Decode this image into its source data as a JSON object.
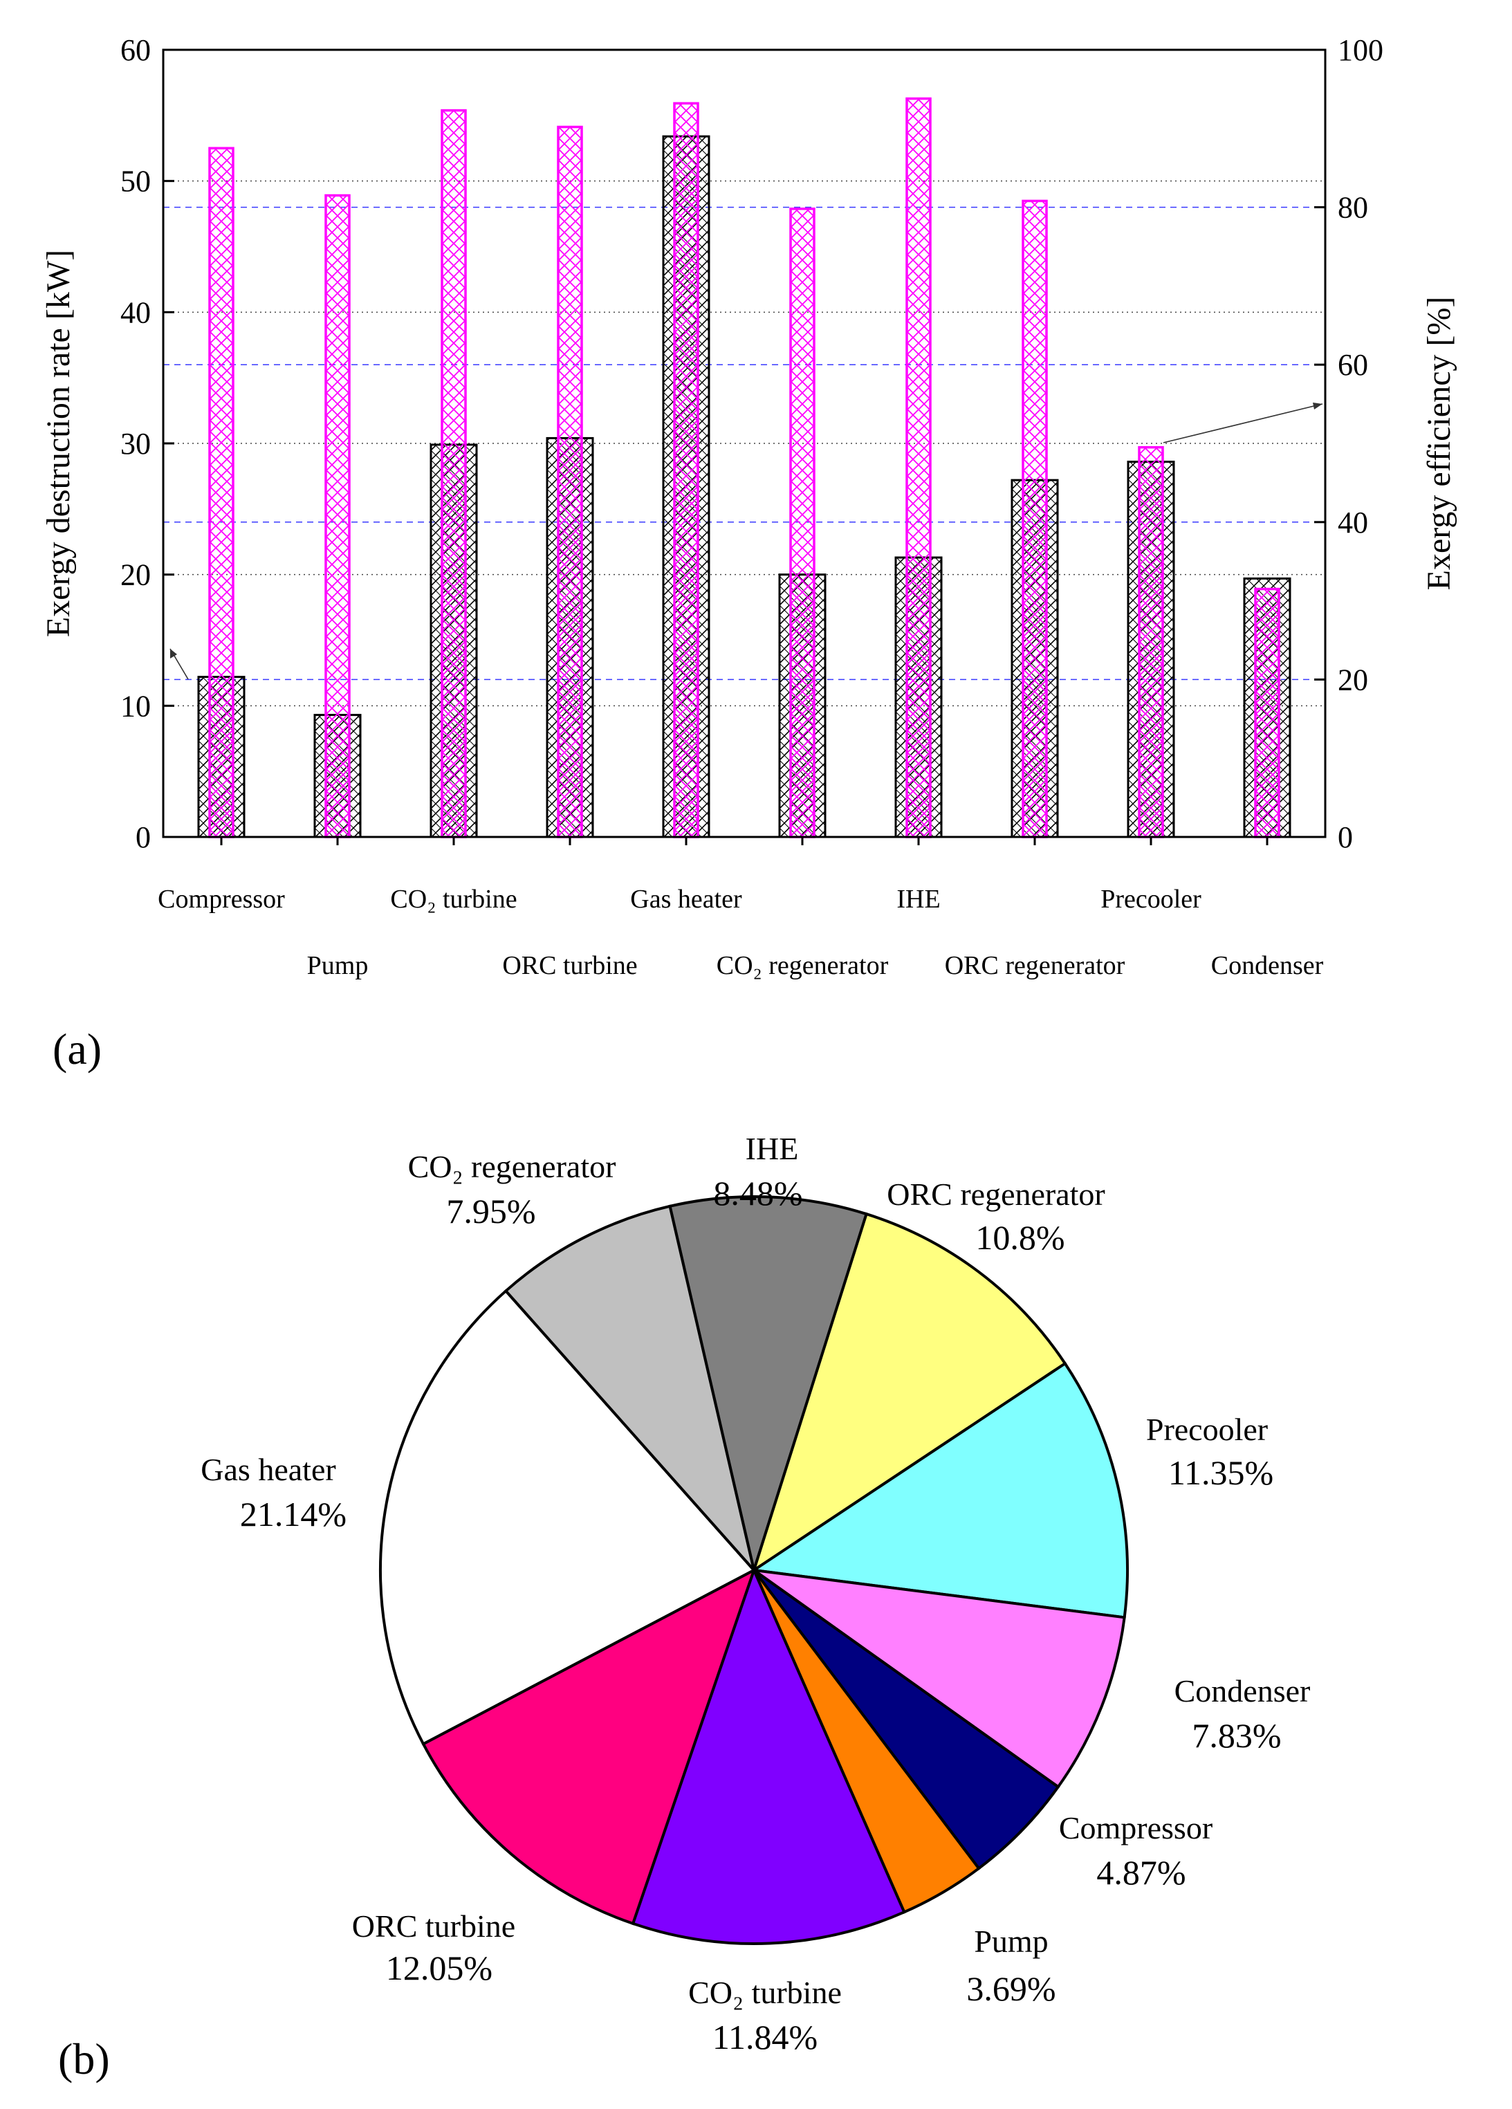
{
  "chart_data": [
    {
      "type": "bar",
      "panel_label": "(a)",
      "categories": [
        "Compressor",
        "Pump",
        "CO₂ turbine",
        "ORC turbine",
        "Gas heater",
        "CO₂ regenerator",
        "IHE",
        "ORC regenerator",
        "Precooler",
        "Condenser"
      ],
      "series": [
        {
          "name": "Exergy destruction rate",
          "axis": "left",
          "color": "#000000",
          "values": [
            12.2,
            9.3,
            29.9,
            30.4,
            53.4,
            20.0,
            21.3,
            27.2,
            28.6,
            19.7
          ]
        },
        {
          "name": "Exergy efficiency",
          "axis": "right",
          "color": "#ff00ff",
          "values": [
            87.5,
            81.5,
            92.3,
            90.2,
            93.2,
            79.8,
            93.8,
            80.8,
            49.5,
            31.5
          ]
        }
      ],
      "ylabel": "Exergy destruction rate [kW]",
      "ylim": [
        0,
        60
      ],
      "yticks": [
        "0",
        "10",
        "20",
        "30",
        "40",
        "50",
        "60"
      ],
      "y2label": "Exergy efficiency [%]",
      "y2lim": [
        0,
        100
      ],
      "y2ticks": [
        "0",
        "20",
        "40",
        "60",
        "80",
        "100"
      ],
      "grid": true
    },
    {
      "type": "pie",
      "panel_label": "(b)",
      "slices": [
        {
          "label": "IHE",
          "value": 8.48,
          "text": "8.48%",
          "color": "#808080"
        },
        {
          "label": "ORC regenerator",
          "value": 10.8,
          "text": "10.8%",
          "color": "#ffff80"
        },
        {
          "label": "Precooler",
          "value": 11.35,
          "text": "11.35%",
          "color": "#80ffff"
        },
        {
          "label": "Condenser",
          "value": 7.83,
          "text": "7.83%",
          "color": "#ff80ff"
        },
        {
          "label": "Compressor",
          "value": 4.87,
          "text": "4.87%",
          "color": "#000080"
        },
        {
          "label": "Pump",
          "value": 3.69,
          "text": "3.69%",
          "color": "#ff8000"
        },
        {
          "label": "CO₂ turbine",
          "value": 11.84,
          "text": "11.84%",
          "color": "#8000ff"
        },
        {
          "label": "ORC turbine",
          "value": 12.05,
          "text": "12.05%",
          "color": "#ff0080"
        },
        {
          "label": "Gas heater",
          "value": 21.14,
          "text": "21.14%",
          "color": "#ffffff"
        },
        {
          "label": "CO₂ regenerator",
          "value": 7.95,
          "text": "7.95%",
          "color": "#c0c0c0"
        }
      ]
    }
  ]
}
